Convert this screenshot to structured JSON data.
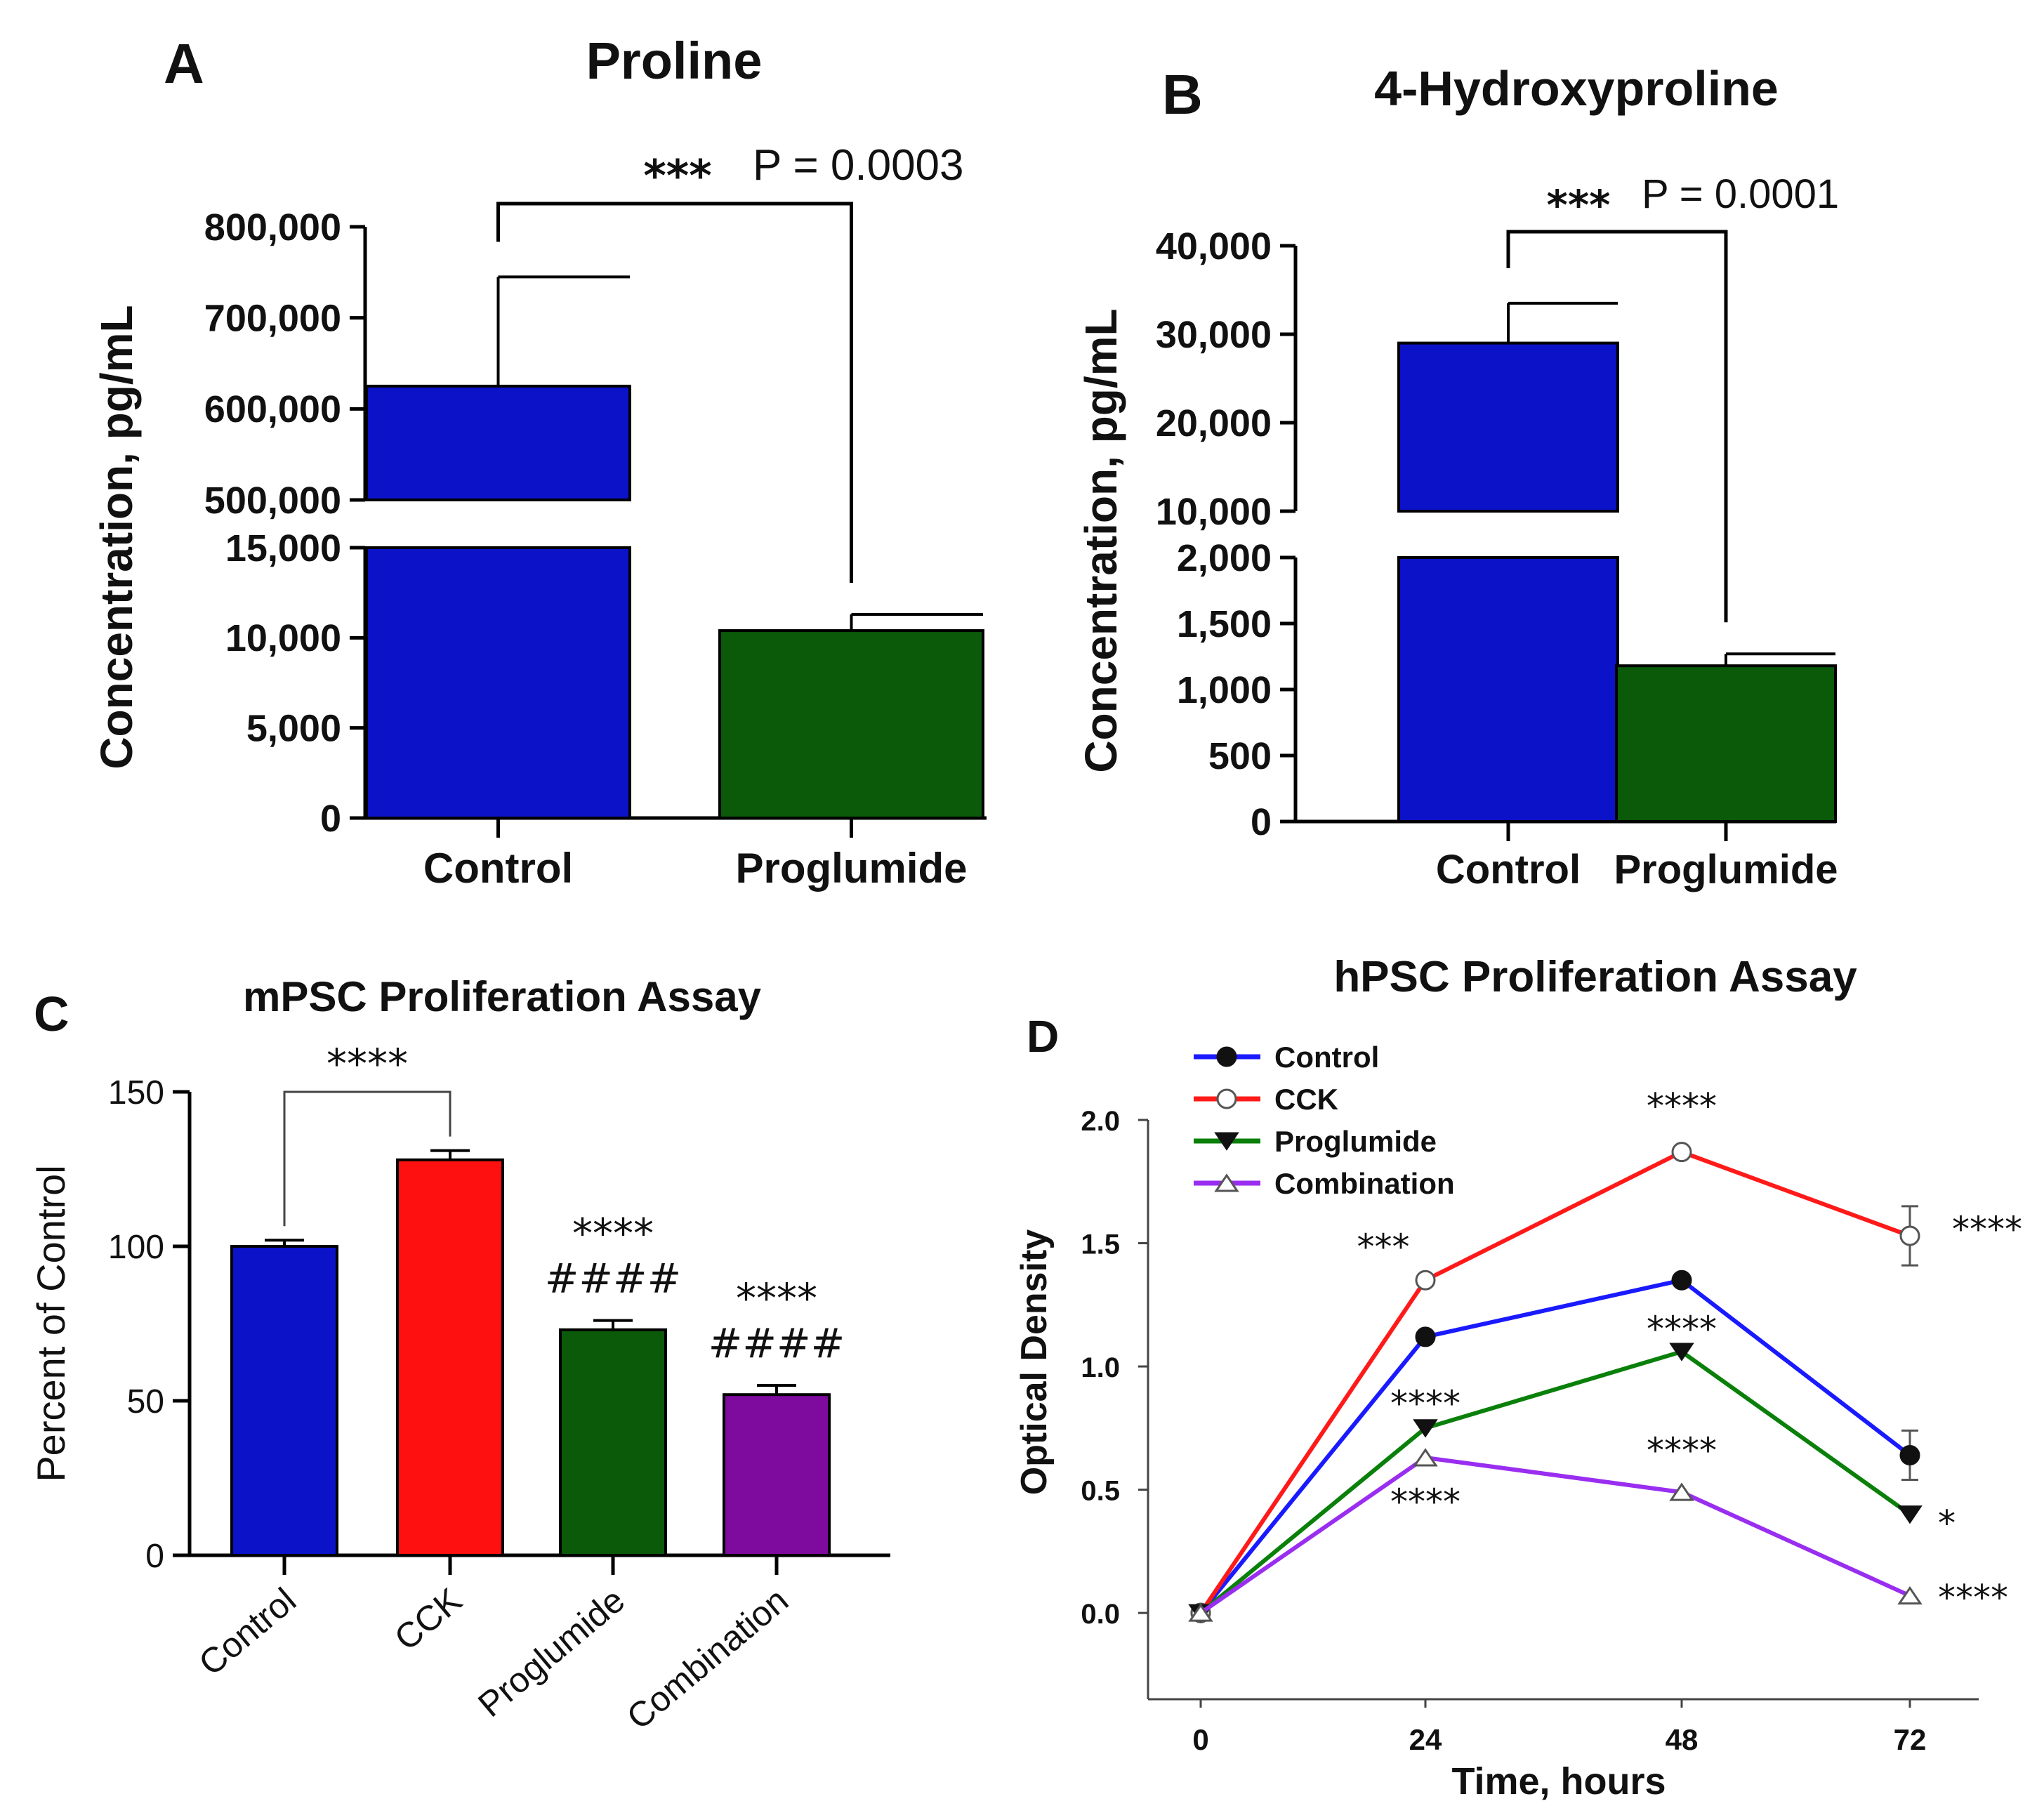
{
  "chart_data": [
    {
      "panel": "A",
      "type": "bar",
      "title": "Proline",
      "ylabel": "Concentration, pg/mL",
      "categories": [
        "Control",
        "Proglumide"
      ],
      "values": [
        625000,
        10400
      ],
      "errors": [
        120000,
        900
      ],
      "colors": [
        "#0b12c8",
        "#0a5a0a"
      ],
      "axis_break": true,
      "lower_ylim": [
        0,
        15000
      ],
      "upper_ylim": [
        500000,
        800000
      ],
      "yticks_lower": [
        "0",
        "5,000",
        "10,000",
        "15,000"
      ],
      "yticks_upper": [
        "500,000",
        "600,000",
        "700,000",
        "800,000"
      ],
      "significance": {
        "stars": "***",
        "label": "P = 0.0003"
      }
    },
    {
      "panel": "B",
      "type": "bar",
      "title": "4-Hydroxyproline",
      "ylabel": "Concentration, pg/mL",
      "categories": [
        "Control",
        "Proglumide"
      ],
      "values": [
        29000,
        1180
      ],
      "errors": [
        4500,
        90
      ],
      "colors": [
        "#0b12c8",
        "#0a5a0a"
      ],
      "axis_break": true,
      "lower_ylim": [
        0,
        2000
      ],
      "upper_ylim": [
        10000,
        40000
      ],
      "yticks_lower": [
        "0",
        "500",
        "1,000",
        "1,500",
        "2,000"
      ],
      "yticks_upper": [
        "10,000",
        "20,000",
        "30,000",
        "40,000"
      ],
      "significance": {
        "stars": "***",
        "label": "P = 0.0001"
      }
    },
    {
      "panel": "C",
      "type": "bar",
      "title": "mPSC Proliferation Assay",
      "ylabel": "Percent of Control",
      "categories": [
        "Control",
        "CCK",
        "Proglumide",
        "Combination"
      ],
      "values": [
        100,
        128,
        73,
        52
      ],
      "errors": [
        2,
        3,
        3,
        3
      ],
      "colors": [
        "#0b12c8",
        "#ff1010",
        "#0a5a0a",
        "#7f0a9e"
      ],
      "ylim": [
        0,
        150
      ],
      "yticks": [
        "0",
        "50",
        "100",
        "150"
      ],
      "bracket_label": "****",
      "bar_labels": [
        [],
        [],
        [
          "****",
          "####"
        ],
        [
          "****",
          "####"
        ]
      ]
    },
    {
      "panel": "D",
      "type": "line",
      "title": "hPSC Proliferation Assay",
      "xlabel": "Time, hours",
      "ylabel": "Optical Density",
      "x": [
        0,
        24,
        48,
        72
      ],
      "xticks": [
        "0",
        "24",
        "48",
        "72"
      ],
      "ylim": [
        -0.35,
        2.0
      ],
      "yticks": [
        "0.0",
        "0.5",
        "1.0",
        "1.5",
        "2.0"
      ],
      "series": [
        {
          "name": "Control",
          "color": "#1a1aff",
          "marker": "circle-filled",
          "values": [
            0.0,
            1.12,
            1.35,
            0.64
          ],
          "errors": [
            0,
            0.02,
            0.02,
            0.1
          ]
        },
        {
          "name": "CCK",
          "color": "#ff1a1a",
          "marker": "circle-open",
          "values": [
            0.0,
            1.35,
            1.87,
            1.53
          ],
          "errors": [
            0,
            0.03,
            0.03,
            0.12
          ]
        },
        {
          "name": "Proglumide",
          "color": "#0a800a",
          "marker": "triangle-down-filled",
          "values": [
            0.0,
            0.75,
            1.06,
            0.4
          ],
          "errors": [
            0,
            0.02,
            0.02,
            0.02
          ]
        },
        {
          "name": "Combination",
          "color": "#9a2ef0",
          "marker": "triangle-up-open",
          "values": [
            0.0,
            0.63,
            0.49,
            0.07
          ],
          "errors": [
            0,
            0.02,
            0.02,
            0.02
          ]
        }
      ],
      "annotations": [
        {
          "text": "****",
          "x": 48,
          "y": 1.87,
          "series": "CCK"
        },
        {
          "text": "***",
          "x": 24,
          "y": 1.35,
          "series": "CCK"
        },
        {
          "text": "****",
          "x": 72,
          "y": 1.53,
          "series": "CCK"
        },
        {
          "text": "****",
          "x": 48,
          "y": 1.06,
          "series": "Proglumide"
        },
        {
          "text": "****",
          "x": 24,
          "y": 0.75,
          "series": "Proglumide"
        },
        {
          "text": "****",
          "x": 48,
          "y": 0.49,
          "series": "Combination"
        },
        {
          "text": "****",
          "x": 24,
          "y": 0.63,
          "series": "Combination"
        },
        {
          "text": "*",
          "x": 72,
          "y": 0.4,
          "series": "Proglumide"
        },
        {
          "text": "****",
          "x": 72,
          "y": 0.07,
          "series": "Combination"
        }
      ]
    }
  ]
}
